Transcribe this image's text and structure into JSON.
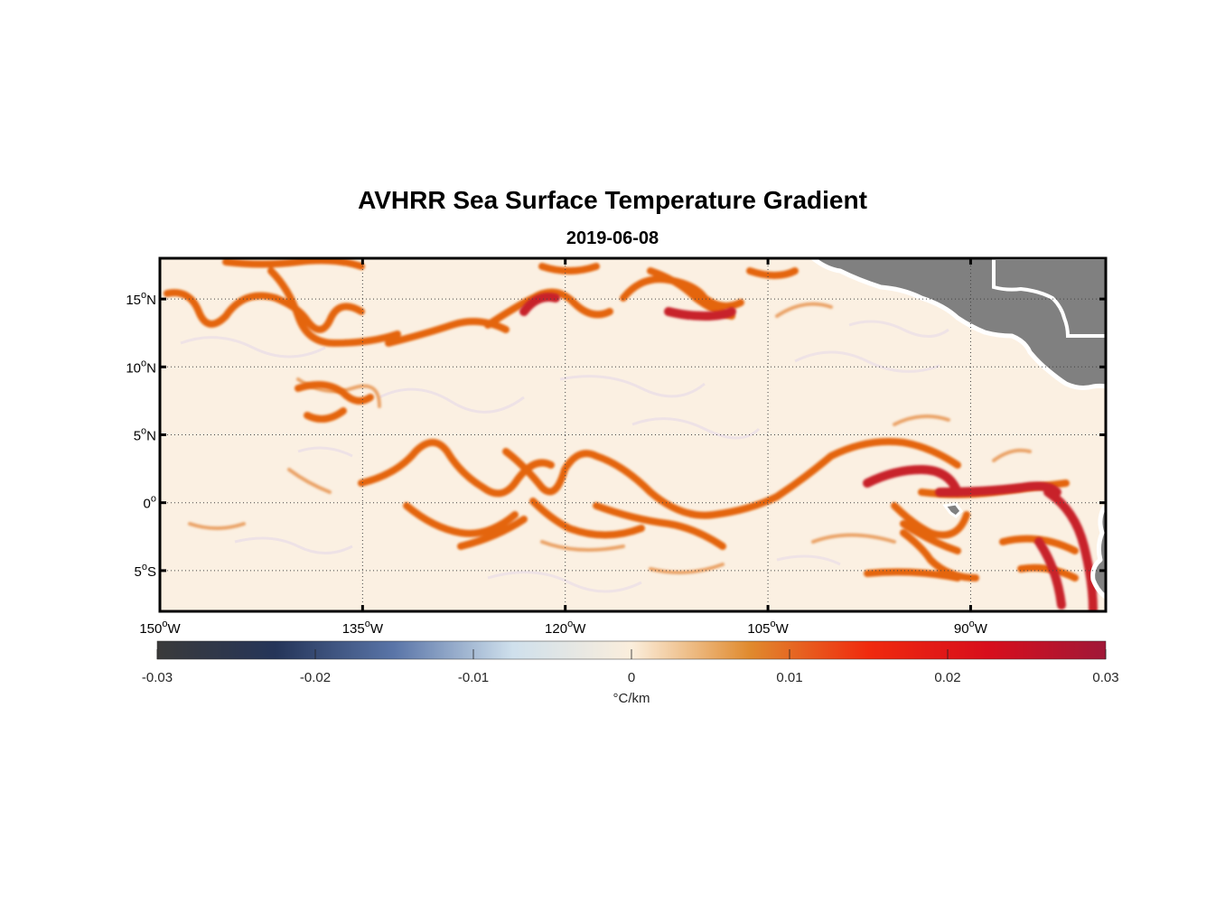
{
  "title": "AVHRR Sea Surface Temperature Gradient",
  "subtitle": "2019-06-08",
  "map": {
    "lon_range": [
      -150,
      -80
    ],
    "lat_range": [
      -8,
      18
    ],
    "lon_ticks": [
      {
        "value": -150,
        "deg": "150",
        "dir": "W"
      },
      {
        "value": -135,
        "deg": "135",
        "dir": "W"
      },
      {
        "value": -120,
        "deg": "120",
        "dir": "W"
      },
      {
        "value": -105,
        "deg": "105",
        "dir": "W"
      },
      {
        "value": -90,
        "deg": "90",
        "dir": "W"
      }
    ],
    "lat_ticks": [
      {
        "value": 15,
        "deg": "15",
        "dir": "N"
      },
      {
        "value": 10,
        "deg": "10",
        "dir": "N"
      },
      {
        "value": 5,
        "deg": "5",
        "dir": "N"
      },
      {
        "value": 0,
        "deg": "0",
        "dir": ""
      },
      {
        "value": -5,
        "deg": "5",
        "dir": "S"
      }
    ],
    "grid": true,
    "land_color": "#808080",
    "background_color": "#fbf0e2",
    "front_color_weak": "#e2873a",
    "front_color_mid": "#e55a10",
    "front_color_strong": "#b81a2a"
  },
  "colorbar": {
    "min": -0.03,
    "max": 0.03,
    "ticks": [
      "-0.03",
      "-0.02",
      "-0.01",
      "0",
      "0.01",
      "0.02",
      "0.03"
    ],
    "label": "°C/km",
    "colors": [
      "#3a3a3a",
      "#253559",
      "#5a75a8",
      "#cfe0ec",
      "#fbeedc",
      "#e08a2e",
      "#f02a0e",
      "#d80e1c",
      "#a01838"
    ]
  }
}
